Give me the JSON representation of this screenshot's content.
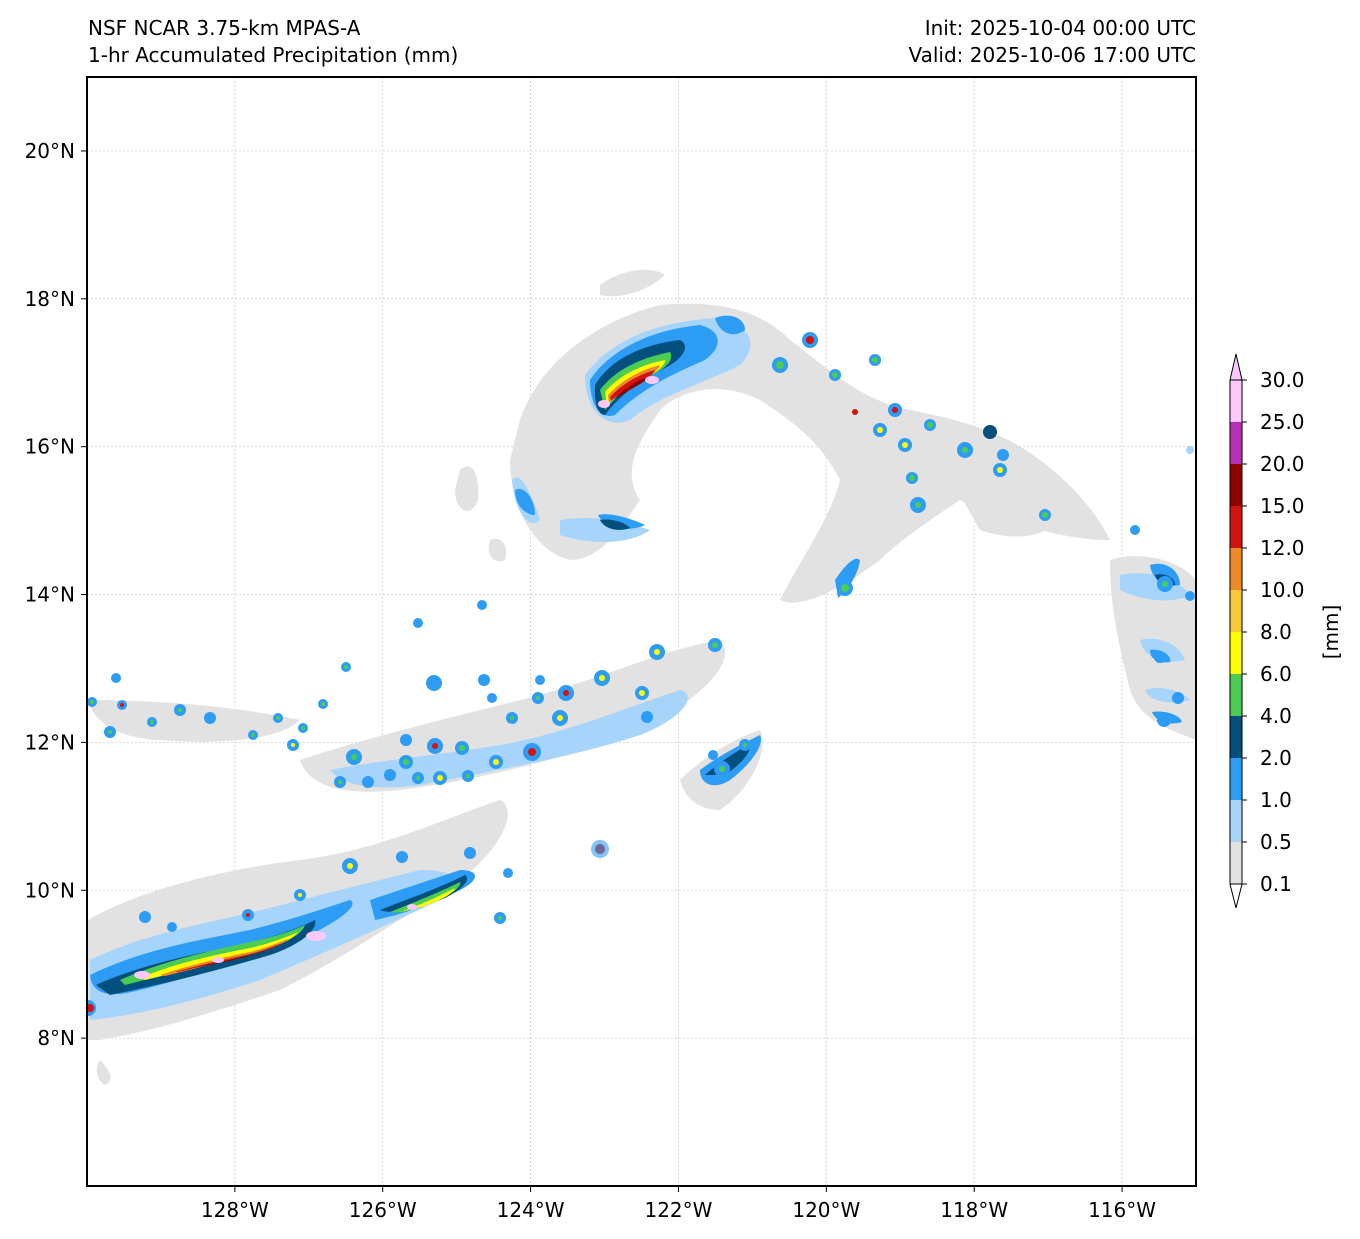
{
  "header": {
    "model": "NSF NCAR 3.75-km MPAS-A",
    "field": "1-hr Accumulated Precipitation (mm)",
    "init": "Init: 2025-10-04 00:00 UTC",
    "valid": "Valid: 2025-10-06 17:00 UTC"
  },
  "axes": {
    "lat_labels": [
      "8°N",
      "10°N",
      "12°N",
      "14°N",
      "16°N",
      "18°N",
      "20°N"
    ],
    "lat_values": [
      8,
      10,
      12,
      14,
      16,
      18,
      20
    ],
    "lon_labels": [
      "128°W",
      "126°W",
      "124°W",
      "122°W",
      "120°W",
      "118°W",
      "116°W"
    ],
    "lon_values": [
      -128,
      -126,
      -124,
      -122,
      -120,
      -118,
      -116
    ],
    "lon_range": [
      -130,
      -115
    ],
    "lat_range": [
      6,
      21
    ],
    "grid": true
  },
  "colorbar": {
    "unit_label": "[mm]",
    "levels": [
      "0.1",
      "0.5",
      "1.0",
      "2.0",
      "4.0",
      "6.0",
      "8.0",
      "10.0",
      "12.0",
      "15.0",
      "20.0",
      "25.0",
      "30.0"
    ],
    "colors": [
      "#e2e2e2",
      "#a6d4fb",
      "#2c9cf4",
      "#03507f",
      "#4bcc52",
      "#ffff00",
      "#fac937",
      "#f08a28",
      "#d4120f",
      "#8f0000",
      "#b62fb6",
      "#fdc8fc"
    ],
    "extend": "both"
  },
  "colors": {
    "frame": "#000000",
    "gridline": "#cfcfcf"
  }
}
